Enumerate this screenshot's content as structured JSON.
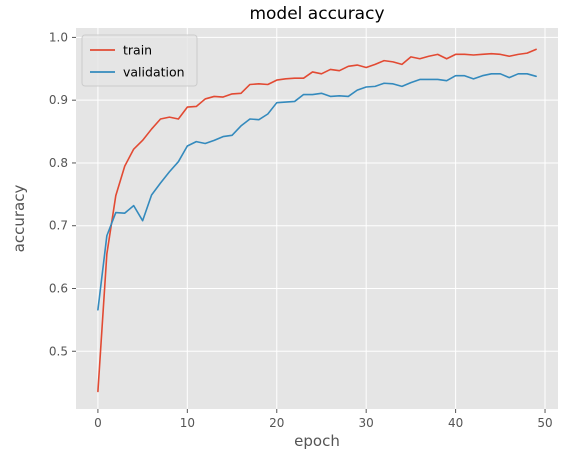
{
  "chart_data": {
    "type": "line",
    "title": "model accuracy",
    "xlabel": "epoch",
    "ylabel": "accuracy",
    "xlim": [
      -2.45,
      51.45
    ],
    "ylim": [
      0.408,
      1.015
    ],
    "xticks": [
      "0",
      "10",
      "20",
      "30",
      "40",
      "50"
    ],
    "yticks": [
      "0.5",
      "0.6",
      "0.7",
      "0.8",
      "0.9",
      "1.0"
    ],
    "xtick_values": [
      0,
      10,
      20,
      30,
      40,
      50
    ],
    "ytick_values": [
      0.5,
      0.6,
      0.7,
      0.8,
      0.9,
      1.0
    ],
    "grid": true,
    "legend_position": "upper-left",
    "background": "#E5E5E5",
    "series": [
      {
        "name": "train",
        "color": "#E24A33",
        "x": [
          0,
          1,
          2,
          3,
          4,
          5,
          6,
          7,
          8,
          9,
          10,
          11,
          12,
          13,
          14,
          15,
          16,
          17,
          18,
          19,
          20,
          21,
          22,
          23,
          24,
          25,
          26,
          27,
          28,
          29,
          30,
          31,
          32,
          33,
          34,
          35,
          36,
          37,
          38,
          39,
          40,
          41,
          42,
          43,
          44,
          45,
          46,
          47,
          48,
          49
        ],
        "y": [
          0.436,
          0.655,
          0.748,
          0.795,
          0.822,
          0.836,
          0.854,
          0.87,
          0.873,
          0.87,
          0.889,
          0.89,
          0.902,
          0.906,
          0.905,
          0.91,
          0.911,
          0.925,
          0.926,
          0.925,
          0.932,
          0.934,
          0.935,
          0.935,
          0.945,
          0.942,
          0.949,
          0.947,
          0.954,
          0.956,
          0.952,
          0.957,
          0.963,
          0.961,
          0.957,
          0.969,
          0.966,
          0.97,
          0.973,
          0.966,
          0.973,
          0.973,
          0.972,
          0.973,
          0.974,
          0.973,
          0.97,
          0.973,
          0.975,
          0.981
        ]
      },
      {
        "name": "validation",
        "color": "#348ABD",
        "x": [
          0,
          1,
          2,
          3,
          4,
          5,
          6,
          7,
          8,
          9,
          10,
          11,
          12,
          13,
          14,
          15,
          16,
          17,
          18,
          19,
          20,
          21,
          22,
          23,
          24,
          25,
          26,
          27,
          28,
          29,
          30,
          31,
          32,
          33,
          34,
          35,
          36,
          37,
          38,
          39,
          40,
          41,
          42,
          43,
          44,
          45,
          46,
          47,
          48,
          49
        ],
        "y": [
          0.566,
          0.684,
          0.721,
          0.72,
          0.732,
          0.708,
          0.749,
          0.768,
          0.786,
          0.802,
          0.827,
          0.834,
          0.831,
          0.836,
          0.842,
          0.844,
          0.859,
          0.87,
          0.869,
          0.878,
          0.896,
          0.897,
          0.898,
          0.909,
          0.909,
          0.911,
          0.906,
          0.907,
          0.906,
          0.916,
          0.921,
          0.922,
          0.927,
          0.926,
          0.922,
          0.928,
          0.933,
          0.933,
          0.933,
          0.931,
          0.939,
          0.939,
          0.934,
          0.939,
          0.942,
          0.942,
          0.936,
          0.942,
          0.942,
          0.938
        ]
      }
    ]
  }
}
